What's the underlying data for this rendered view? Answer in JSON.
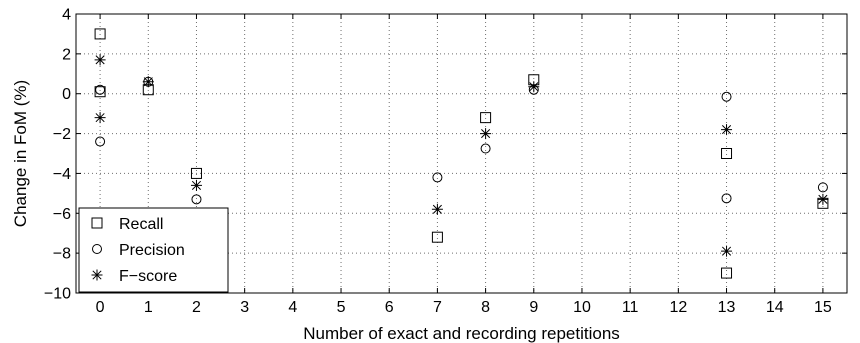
{
  "chart_data": {
    "type": "scatter",
    "title": "",
    "xlabel": "Number of exact and recording repetitions",
    "ylabel": "Change in FoM (%)",
    "xlim": [
      -0.5,
      15.5
    ],
    "ylim": [
      -10,
      4
    ],
    "xticks": [
      0,
      1,
      2,
      3,
      4,
      5,
      6,
      7,
      8,
      9,
      10,
      11,
      12,
      13,
      14,
      15
    ],
    "yticks": [
      -10,
      -8,
      -6,
      -4,
      -2,
      0,
      2,
      4
    ],
    "grid": true,
    "legend_position": "bottom-left",
    "series": [
      {
        "name": "Recall",
        "marker": "square",
        "points": [
          {
            "x": 0,
            "y": 3.0
          },
          {
            "x": 0,
            "y": 0.1
          },
          {
            "x": 1,
            "y": 0.2
          },
          {
            "x": 2,
            "y": -4.0
          },
          {
            "x": 7,
            "y": -7.2
          },
          {
            "x": 8,
            "y": -1.2
          },
          {
            "x": 9,
            "y": 0.7
          },
          {
            "x": 13,
            "y": -3.0
          },
          {
            "x": 13,
            "y": -9.0
          },
          {
            "x": 15,
            "y": -5.5
          }
        ]
      },
      {
        "name": "Precision",
        "marker": "circle",
        "points": [
          {
            "x": 0,
            "y": 0.2
          },
          {
            "x": 0,
            "y": -2.4
          },
          {
            "x": 1,
            "y": 0.6
          },
          {
            "x": 2,
            "y": -5.3
          },
          {
            "x": 7,
            "y": -4.2
          },
          {
            "x": 8,
            "y": -2.75
          },
          {
            "x": 9,
            "y": 0.2
          },
          {
            "x": 13,
            "y": -0.15
          },
          {
            "x": 13,
            "y": -5.25
          },
          {
            "x": 15,
            "y": -4.7
          }
        ]
      },
      {
        "name": "F−score",
        "marker": "star",
        "points": [
          {
            "x": 0,
            "y": 1.7
          },
          {
            "x": 0,
            "y": -1.2
          },
          {
            "x": 1,
            "y": 0.6
          },
          {
            "x": 2,
            "y": -4.6
          },
          {
            "x": 7,
            "y": -5.8
          },
          {
            "x": 8,
            "y": -2.0
          },
          {
            "x": 9,
            "y": 0.35
          },
          {
            "x": 13,
            "y": -1.8
          },
          {
            "x": 13,
            "y": -7.9
          },
          {
            "x": 15,
            "y": -5.3
          }
        ]
      }
    ]
  }
}
